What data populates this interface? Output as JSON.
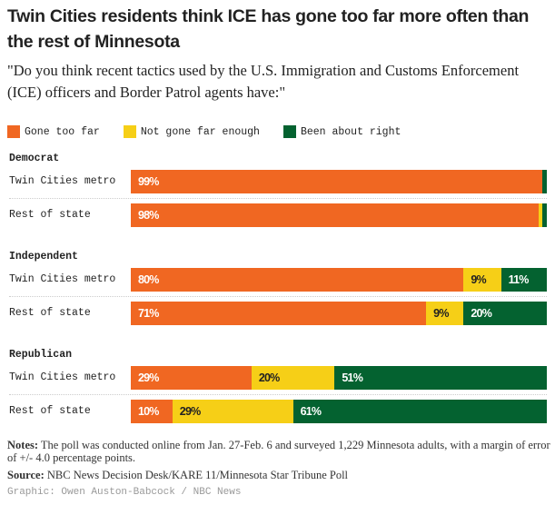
{
  "title": "Twin Cities residents think ICE has gone too far more often than the rest of Minnesota",
  "subtitle": "\"Do you think recent tactics used by the U.S. Immigration and Customs Enforcement (ICE) officers and Border Patrol agents have:\"",
  "chart_data": {
    "type": "bar",
    "stacked": true,
    "orientation": "horizontal",
    "unit": "%",
    "legend": [
      {
        "name": "Gone too far",
        "color": "#f06722"
      },
      {
        "name": "Not gone far enough",
        "color": "#f6cf17"
      },
      {
        "name": "Been about right",
        "color": "#046230"
      }
    ],
    "legend_placement": "top-left",
    "groups": [
      {
        "name": "Democrat",
        "rows": [
          {
            "label": "Twin Cities metro",
            "values": [
              99,
              0,
              1
            ],
            "labels": [
              "99%",
              "",
              ""
            ]
          },
          {
            "label": "Rest of state",
            "values": [
              98,
              1,
              1
            ],
            "labels": [
              "98%",
              "",
              ""
            ]
          }
        ]
      },
      {
        "name": "Independent",
        "rows": [
          {
            "label": "Twin Cities metro",
            "values": [
              80,
              9,
              11
            ],
            "labels": [
              "80%",
              "9%",
              "11%"
            ]
          },
          {
            "label": "Rest of state",
            "values": [
              71,
              9,
              20
            ],
            "labels": [
              "71%",
              "9%",
              "20%"
            ]
          }
        ]
      },
      {
        "name": "Republican",
        "rows": [
          {
            "label": "Twin Cities metro",
            "values": [
              29,
              20,
              51
            ],
            "labels": [
              "29%",
              "20%",
              "51%"
            ]
          },
          {
            "label": "Rest of state",
            "values": [
              10,
              29,
              61
            ],
            "labels": [
              "10%",
              "29%",
              "61%"
            ]
          }
        ]
      }
    ]
  },
  "notes_label": "Notes:",
  "notes": " The poll was conducted online from Jan. 27-Feb. 6 and surveyed 1,229 Minnesota adults, with a margin of error of +/- 4.0 percentage points.",
  "source_label": "Source:",
  "source": " NBC News Decision Desk/KARE 11/Minnesota Star Tribune Poll",
  "credit": "Graphic: Owen Auston-Babcock / NBC News"
}
